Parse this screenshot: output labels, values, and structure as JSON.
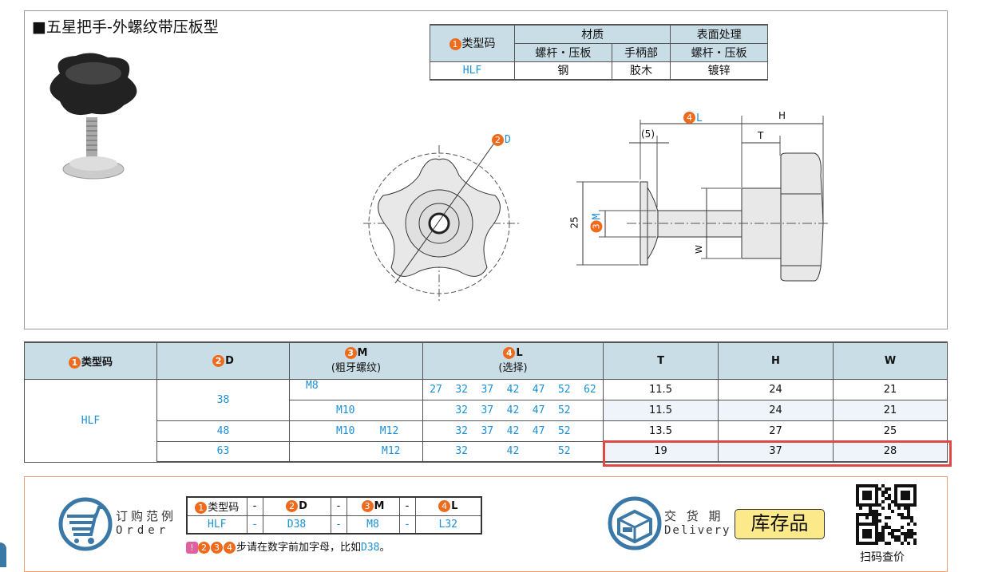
{
  "title": "■五星把手-外螺纹带压板型",
  "material_table": {
    "type_code": "类型码",
    "material": "材质",
    "surface": "表面处理",
    "sub": [
      "螺杆・压板",
      "手柄部",
      "螺杆・压板"
    ],
    "row": {
      "code": "HLF",
      "screw": "钢",
      "handle": "胶木",
      "surface": "镀锌"
    }
  },
  "drawing": {
    "d_label": "D",
    "l_label": "L",
    "m_label": "M",
    "h_label": "H",
    "t_label": "T",
    "w_label": "W",
    "five": "(5)",
    "dim25": "25"
  },
  "spec_table": {
    "headers": {
      "type_code": "类型码",
      "d": "D",
      "m": "M",
      "m_sub": "(粗牙螺纹)",
      "l": "L",
      "l_sub": "(选择)",
      "t": "T",
      "h": "H",
      "w": "W"
    },
    "type": "HLF",
    "rows": [
      {
        "d": "38",
        "m": "M8",
        "l": [
          "27",
          "32",
          "37",
          "42",
          "47",
          "52",
          "62"
        ],
        "t": "11.5",
        "h": "24",
        "w": "21"
      },
      {
        "d": "",
        "m": "M10",
        "l": [
          "",
          "32",
          "37",
          "42",
          "47",
          "52",
          ""
        ],
        "t": "11.5",
        "h": "24",
        "w": "21"
      },
      {
        "d": "48",
        "m": "M10    M12",
        "l": [
          "",
          "32",
          "37",
          "42",
          "47",
          "52",
          ""
        ],
        "t": "13.5",
        "h": "27",
        "w": "25"
      },
      {
        "d": "63",
        "m": "M12",
        "l": [
          "",
          "32",
          "",
          "42",
          "",
          "52",
          ""
        ],
        "t": "19",
        "h": "37",
        "w": "28"
      }
    ]
  },
  "order": {
    "label_cn": "订购范例",
    "label_en": "Order",
    "headers": [
      "类型码",
      "-",
      "D",
      "-",
      "M",
      "-",
      "L"
    ],
    "values": [
      "HLF",
      "-",
      "D38",
      "-",
      "M8",
      "-",
      "L32"
    ],
    "note": "步请在数字前加字母，比如",
    "note_example": "D38",
    "note_end": "。"
  },
  "delivery": {
    "label_cn": "交 货 期",
    "label_en": "Delivery",
    "stock": "库存品"
  },
  "qr": {
    "caption": "扫码查价"
  },
  "colors": {
    "accent_orange": "#ee6a1c",
    "code_blue": "#1a8fd6",
    "header_bg": "#c9dde6",
    "highlight": "#e04848",
    "icon_blue": "#3a78a8"
  }
}
